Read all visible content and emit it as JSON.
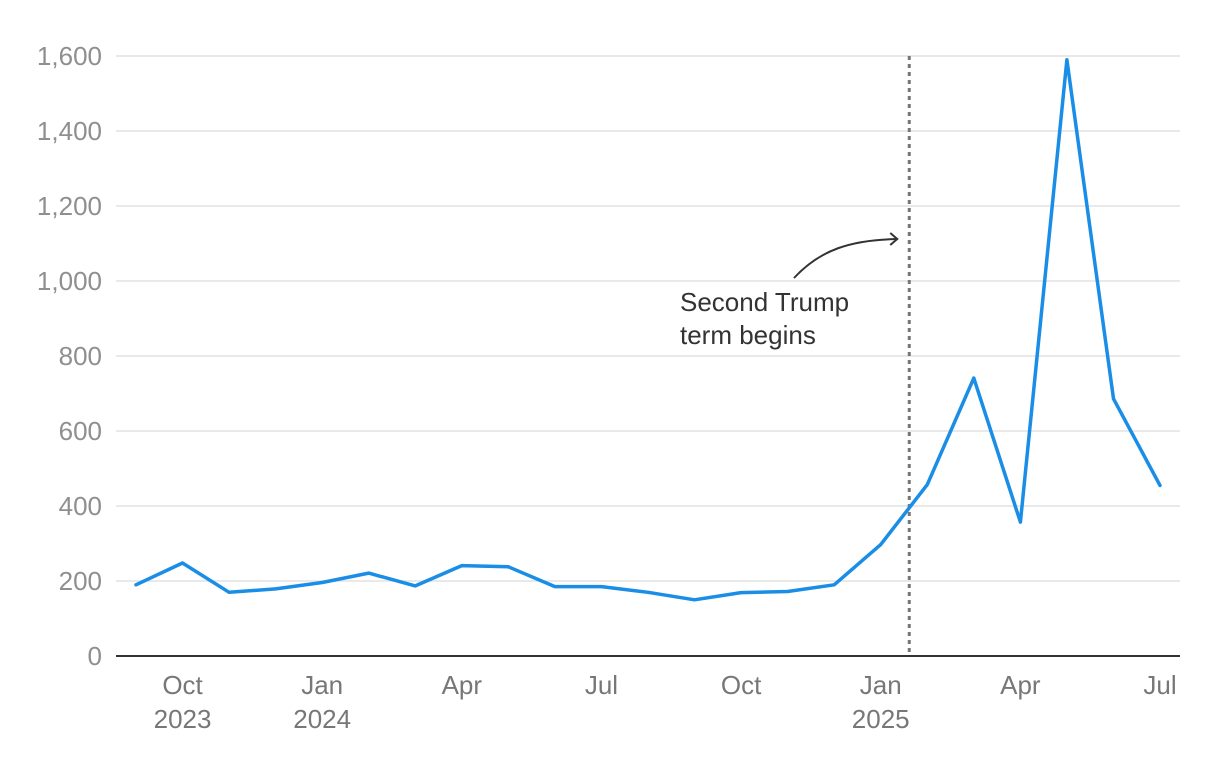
{
  "chart_data": {
    "type": "line",
    "title": "",
    "xlabel": "",
    "ylabel": "",
    "ylim": [
      0,
      1600
    ],
    "y_ticks": [
      {
        "value": 0,
        "label": "0"
      },
      {
        "value": 200,
        "label": "200"
      },
      {
        "value": 400,
        "label": "400"
      },
      {
        "value": 600,
        "label": "600"
      },
      {
        "value": 800,
        "label": "800"
      },
      {
        "value": 1000,
        "label": "1,000"
      },
      {
        "value": 1200,
        "label": "1,200"
      },
      {
        "value": 1400,
        "label": "1,400"
      },
      {
        "value": 1600,
        "label": "1,600"
      }
    ],
    "x_ticks": [
      {
        "x": "2023-10",
        "lines": [
          "Oct",
          "2023"
        ]
      },
      {
        "x": "2024-01",
        "lines": [
          "Jan",
          "2024"
        ]
      },
      {
        "x": "2024-04",
        "lines": [
          "Apr"
        ]
      },
      {
        "x": "2024-07",
        "lines": [
          "Jul"
        ]
      },
      {
        "x": "2024-10",
        "lines": [
          "Oct"
        ]
      },
      {
        "x": "2025-01",
        "lines": [
          "Jan",
          "2025"
        ]
      },
      {
        "x": "2025-04",
        "lines": [
          "Apr"
        ]
      },
      {
        "x": "2025-07",
        "lines": [
          "Jul"
        ]
      }
    ],
    "grid": true,
    "legend": "none",
    "series": [
      {
        "color": "#1a8ee6",
        "x": [
          "2023-09",
          "2023-10",
          "2023-11",
          "2023-12",
          "2024-01",
          "2024-02",
          "2024-03",
          "2024-04",
          "2024-05",
          "2024-06",
          "2024-07",
          "2024-08",
          "2024-09",
          "2024-10",
          "2024-11",
          "2024-12",
          "2025-01",
          "2025-02",
          "2025-03",
          "2025-04",
          "2025-05",
          "2025-06",
          "2025-07"
        ],
        "values": [
          190,
          248,
          170,
          179,
          196,
          221,
          187,
          241,
          238,
          185,
          185,
          170,
          150,
          169,
          172,
          190,
          297,
          457,
          741,
          357,
          1590,
          686,
          455
        ]
      }
    ],
    "marker": {
      "x": "2025-01-20",
      "annotation_lines": [
        "Second Trump",
        "term begins"
      ]
    }
  }
}
